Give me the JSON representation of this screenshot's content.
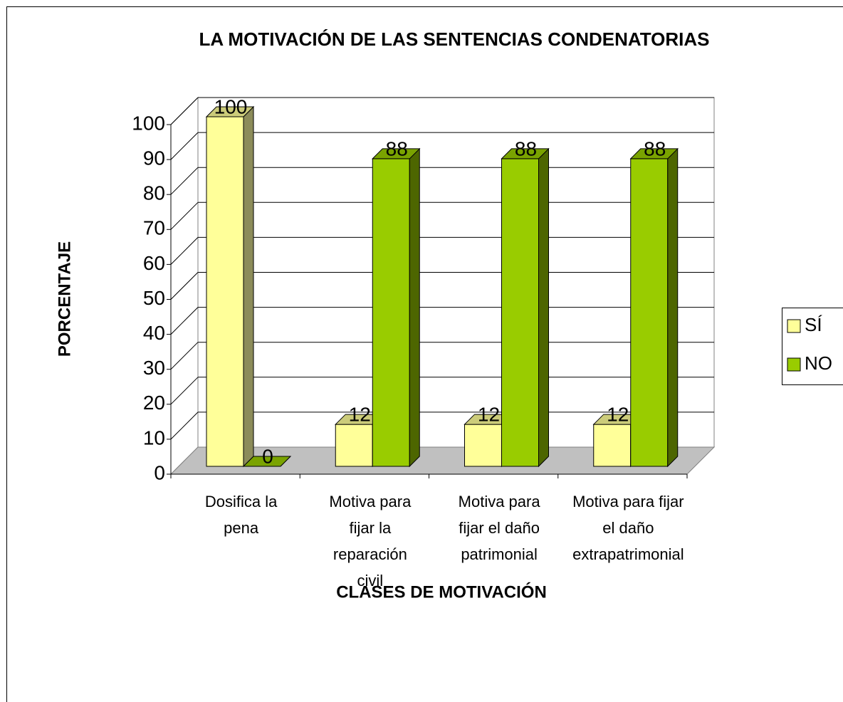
{
  "chart_data": {
    "type": "bar3d",
    "title": "LA MOTIVACIÓN DE LAS SENTENCIAS CONDENATORIAS",
    "y_label": "PORCENTAJE",
    "x_label": "CLASES DE MOTIVACIÓN",
    "categories": [
      "Dosifica la\npena",
      "Motiva para\nfijar la\nreparación\ncivil",
      "Motiva para\nfijar el daño\npatrimonial",
      "Motiva para fijar\nel daño\nextrapatrimonial"
    ],
    "series": [
      {
        "name": "SÍ",
        "color": "#ffff99",
        "top_color": "#cccc7a",
        "side_color": "#8c8c5a",
        "values": [
          100,
          12,
          12,
          12
        ]
      },
      {
        "name": "NO",
        "color": "#99cc00",
        "top_color": "#7aa300",
        "side_color": "#4d6600",
        "values": [
          0,
          88,
          88,
          88
        ]
      }
    ],
    "ylim": [
      0,
      100
    ],
    "yticks": [
      0,
      10,
      20,
      30,
      40,
      50,
      60,
      70,
      80,
      90,
      100
    ],
    "grid": true,
    "legend": "right"
  }
}
